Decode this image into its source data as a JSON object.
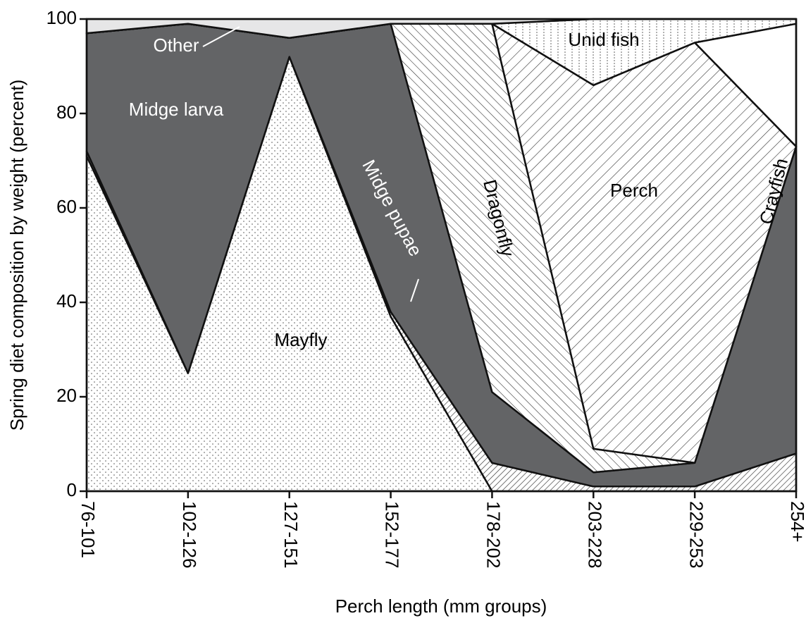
{
  "chart_data": {
    "type": "stacked_area",
    "x_label": "Perch length (mm groups)",
    "y_label": "Spring diet composition by weight (percent)",
    "categories": [
      "76-101",
      "102-126",
      "127-151",
      "152-177",
      "178-202",
      "203-228",
      "229-253",
      "254+"
    ],
    "ylim": [
      0,
      100
    ],
    "yticks": [
      0,
      20,
      40,
      60,
      80,
      100
    ],
    "series": [
      {
        "name": "Mayfly",
        "color": "#ffffff",
        "pattern": "dots",
        "values": [
          71,
          25,
          92,
          37,
          0,
          0,
          0,
          0
        ]
      },
      {
        "name": "Midge pupae",
        "color": "#ffffff",
        "pattern": "fine-hatch",
        "values": [
          1,
          0,
          0,
          1,
          6,
          1,
          1,
          8
        ]
      },
      {
        "name": "Midge larva",
        "color": "#636466",
        "pattern": "solid",
        "values": [
          25,
          74,
          4,
          61,
          15,
          3,
          5,
          65
        ]
      },
      {
        "name": "Dragonfly",
        "color": "#ffffff",
        "pattern": "back-hatch",
        "values": [
          0,
          0,
          0,
          0,
          78,
          5,
          0,
          0
        ]
      },
      {
        "name": "Perch",
        "color": "#ffffff",
        "pattern": "hatch",
        "values": [
          0,
          0,
          0,
          0,
          0,
          77,
          89,
          0
        ]
      },
      {
        "name": "Crayfish",
        "color": "#ffffff",
        "pattern": "solid",
        "values": [
          0,
          0,
          0,
          0,
          0,
          0,
          0,
          26
        ]
      },
      {
        "name": "Unid fish",
        "color": "#ffffff",
        "pattern": "vdots",
        "values": [
          0,
          0,
          0,
          0,
          0,
          14,
          5,
          1
        ]
      },
      {
        "name": "Other",
        "color": "#e6e6e7",
        "pattern": "solid",
        "values": [
          3,
          1,
          4,
          1,
          1,
          0,
          0,
          0
        ]
      }
    ]
  }
}
